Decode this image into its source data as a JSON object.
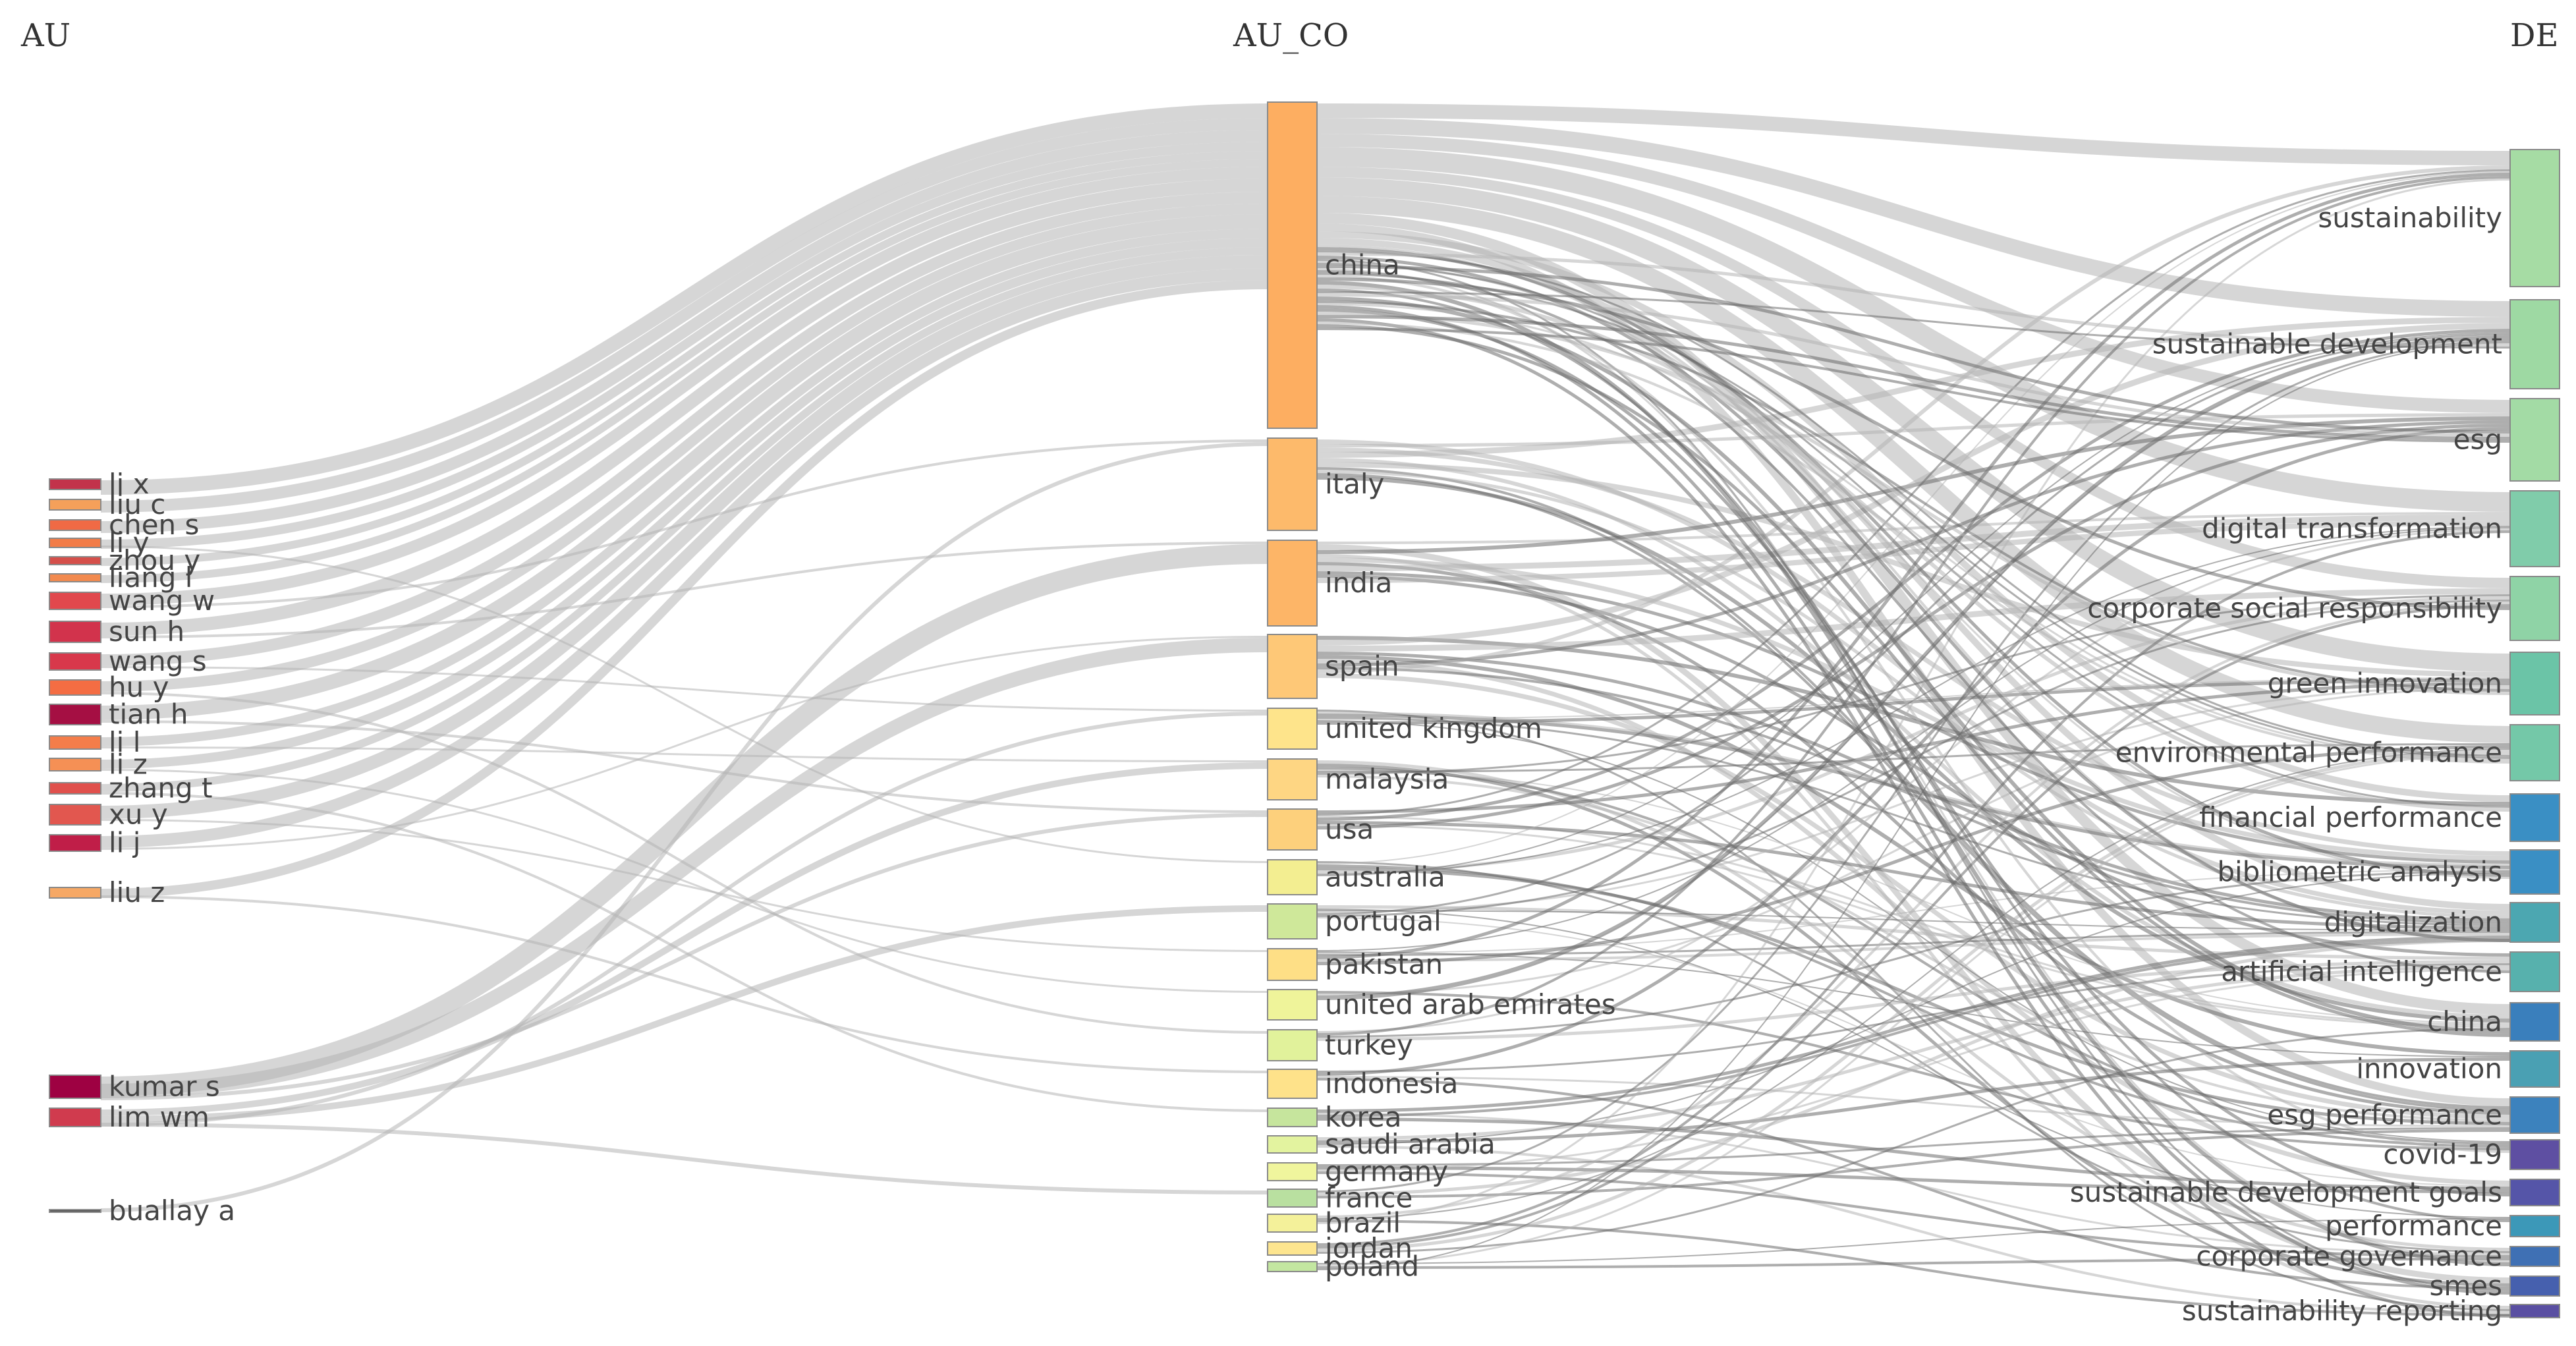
{
  "columns": {
    "au": {
      "title": "AU"
    },
    "au_co": {
      "title": "AU_CO"
    },
    "de": {
      "title": "DE"
    }
  },
  "nodes": {
    "au": [
      {
        "id": "li x",
        "label": "li x",
        "color": "#c2334b"
      },
      {
        "id": "liu c",
        "label": "liu c",
        "color": "#f5a05a"
      },
      {
        "id": "chen s",
        "label": "chen s",
        "color": "#f06a45"
      },
      {
        "id": "li y",
        "label": "li y",
        "color": "#f27c48"
      },
      {
        "id": "zhou y",
        "label": "zhou y",
        "color": "#d54f4a"
      },
      {
        "id": "liang l",
        "label": "liang l",
        "color": "#f28a4f"
      },
      {
        "id": "wang w",
        "label": "wang w",
        "color": "#e1484d"
      },
      {
        "id": "sun h",
        "label": "sun h",
        "color": "#d2334c"
      },
      {
        "id": "wang s",
        "label": "wang s",
        "color": "#d8384b"
      },
      {
        "id": "hu y",
        "label": "hu y",
        "color": "#f46d43"
      },
      {
        "id": "tian h",
        "label": "tian h",
        "color": "#a50f43"
      },
      {
        "id": "li l",
        "label": "li l",
        "color": "#f47d4a"
      },
      {
        "id": "li z",
        "label": "li z",
        "color": "#f59055"
      },
      {
        "id": "zhang t",
        "label": "zhang t",
        "color": "#e0504c"
      },
      {
        "id": "xu y",
        "label": "xu y",
        "color": "#e2574f"
      },
      {
        "id": "li j",
        "label": "li j",
        "color": "#c01e48"
      },
      {
        "id": "liu z",
        "label": "liu z",
        "color": "#f6a865"
      },
      {
        "id": "kumar s",
        "label": "kumar s",
        "color": "#9e0142"
      },
      {
        "id": "lim wm",
        "label": "lim wm",
        "color": "#d03b4e"
      },
      {
        "id": "buallay a",
        "label": "buallay a",
        "color": "#555555"
      }
    ],
    "au_co": [
      {
        "id": "china",
        "label": "china",
        "color": "#fdae61"
      },
      {
        "id": "italy",
        "label": "italy",
        "color": "#fdba6b"
      },
      {
        "id": "india",
        "label": "india",
        "color": "#fdb567"
      },
      {
        "id": "spain",
        "label": "spain",
        "color": "#fec877"
      },
      {
        "id": "united kingdom",
        "label": "united kingdom",
        "color": "#fee48b"
      },
      {
        "id": "malaysia",
        "label": "malaysia",
        "color": "#fed683"
      },
      {
        "id": "usa",
        "label": "usa",
        "color": "#fdd07c"
      },
      {
        "id": "australia",
        "label": "australia",
        "color": "#f3ee91"
      },
      {
        "id": "portugal",
        "label": "portugal",
        "color": "#cfe89a"
      },
      {
        "id": "pakistan",
        "label": "pakistan",
        "color": "#fedf86"
      },
      {
        "id": "united arab emirates",
        "label": "united arab emirates",
        "color": "#eff49a"
      },
      {
        "id": "turkey",
        "label": "turkey",
        "color": "#e1f29b"
      },
      {
        "id": "indonesia",
        "label": "indonesia",
        "color": "#fee28a"
      },
      {
        "id": "korea",
        "label": "korea",
        "color": "#c6e59d"
      },
      {
        "id": "saudi arabia",
        "label": "saudi arabia",
        "color": "#e3f39f"
      },
      {
        "id": "germany",
        "label": "germany",
        "color": "#f0f59d"
      },
      {
        "id": "france",
        "label": "france",
        "color": "#b9e0a0"
      },
      {
        "id": "brazil",
        "label": "brazil",
        "color": "#f4f19a"
      },
      {
        "id": "jordan",
        "label": "jordan",
        "color": "#fde58f"
      },
      {
        "id": "poland",
        "label": "poland",
        "color": "#c3e6a0"
      }
    ],
    "de": [
      {
        "id": "sustainability",
        "label": "sustainability",
        "color": "#a6dca4"
      },
      {
        "id": "sustainable development",
        "label": "sustainable development",
        "color": "#9ed9a3"
      },
      {
        "id": "esg",
        "label": "esg",
        "color": "#a3dba5"
      },
      {
        "id": "digital transformation",
        "label": "digital transformation",
        "color": "#80ccaa"
      },
      {
        "id": "corporate social responsibility",
        "label": "corporate social responsibility",
        "color": "#8fd3a6"
      },
      {
        "id": "green innovation",
        "label": "green innovation",
        "color": "#6bc4a7"
      },
      {
        "id": "environmental performance",
        "label": "environmental performance",
        "color": "#74c8a8"
      },
      {
        "id": "financial performance",
        "label": "financial performance",
        "color": "#3a8fc4"
      },
      {
        "id": "bibliometric analysis",
        "label": "bibliometric analysis",
        "color": "#3a8fc4"
      },
      {
        "id": "digitalization",
        "label": "digitalization",
        "color": "#4ca7b1"
      },
      {
        "id": "artificial intelligence",
        "label": "artificial intelligence",
        "color": "#57b1ad"
      },
      {
        "id": "china",
        "label": "china",
        "color": "#3a7fbc"
      },
      {
        "id": "innovation",
        "label": "innovation",
        "color": "#4aa0b3"
      },
      {
        "id": "esg performance",
        "label": "esg performance",
        "color": "#3c82bd"
      },
      {
        "id": "covid-19",
        "label": "covid-19",
        "color": "#5e4fa2"
      },
      {
        "id": "sustainable development goals",
        "label": "sustainable development goals",
        "color": "#5555a8"
      },
      {
        "id": "performance",
        "label": "performance",
        "color": "#3c98b8"
      },
      {
        "id": "corporate governance",
        "label": "corporate governance",
        "color": "#3f70b4"
      },
      {
        "id": "smes",
        "label": "smes",
        "color": "#4660ae"
      },
      {
        "id": "sustainability reporting",
        "label": "sustainability reporting",
        "color": "#5a4fa2"
      }
    ]
  }
}
